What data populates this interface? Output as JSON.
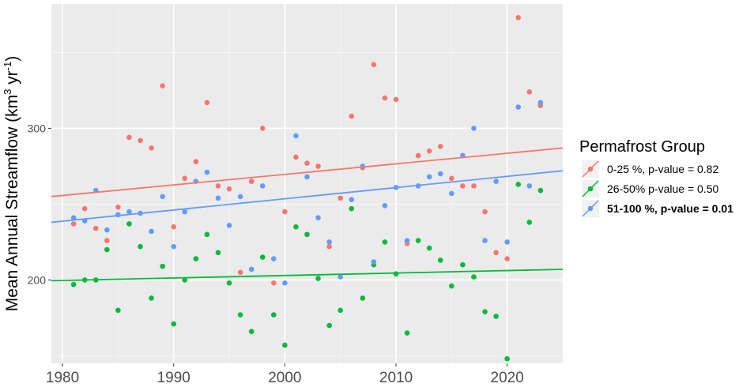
{
  "chart_data": {
    "type": "scatter",
    "title": "",
    "xlabel": "",
    "ylabel_main": "Mean Annual Streamflow (km",
    "ylabel_sup1": "3",
    "ylabel_mid": " yr",
    "ylabel_sup2": "-1",
    "ylabel_end": ")",
    "xlim": [
      1979,
      2025
    ],
    "ylim": [
      145,
      382
    ],
    "xticks": [
      "1980",
      "1990",
      "2000",
      "2010",
      "2020"
    ],
    "yticks": [
      "200",
      "300"
    ],
    "grid": true,
    "legend_position": "right",
    "legend_title": "Permafrost Group",
    "series": [
      {
        "name": "0-25 %, p-value = 0.82",
        "color": "#F8766D",
        "bold": false,
        "trend": [
          [
            1979,
            255
          ],
          [
            2025,
            287
          ]
        ],
        "points": [
          [
            1981,
            237
          ],
          [
            1982,
            247
          ],
          [
            1983,
            234
          ],
          [
            1984,
            226
          ],
          [
            1985,
            248
          ],
          [
            1986,
            294
          ],
          [
            1987,
            292
          ],
          [
            1988,
            287
          ],
          [
            1989,
            328
          ],
          [
            1990,
            235
          ],
          [
            1991,
            267
          ],
          [
            1992,
            278
          ],
          [
            1993,
            317
          ],
          [
            1994,
            262
          ],
          [
            1995,
            260
          ],
          [
            1996,
            205
          ],
          [
            1997,
            265
          ],
          [
            1998,
            300
          ],
          [
            1999,
            198
          ],
          [
            2000,
            245
          ],
          [
            2001,
            281
          ],
          [
            2002,
            277
          ],
          [
            2003,
            275
          ],
          [
            2004,
            222
          ],
          [
            2005,
            254
          ],
          [
            2006,
            308
          ],
          [
            2007,
            274
          ],
          [
            2008,
            342
          ],
          [
            2009,
            320
          ],
          [
            2010,
            319
          ],
          [
            2011,
            224
          ],
          [
            2012,
            282
          ],
          [
            2013,
            285
          ],
          [
            2014,
            288
          ],
          [
            2015,
            267
          ],
          [
            2016,
            262
          ],
          [
            2017,
            262
          ],
          [
            2018,
            245
          ],
          [
            2019,
            218
          ],
          [
            2020,
            214
          ],
          [
            2021,
            373
          ],
          [
            2022,
            324
          ],
          [
            2023,
            315
          ]
        ]
      },
      {
        "name": "26-50% p-value = 0.50",
        "color": "#00BA38",
        "bold": false,
        "trend": [
          [
            1979,
            199.5
          ],
          [
            2025,
            207
          ]
        ],
        "points": [
          [
            1981,
            197
          ],
          [
            1982,
            200
          ],
          [
            1983,
            200
          ],
          [
            1984,
            220
          ],
          [
            1985,
            180
          ],
          [
            1986,
            237
          ],
          [
            1987,
            222
          ],
          [
            1988,
            188
          ],
          [
            1989,
            209
          ],
          [
            1990,
            171
          ],
          [
            1991,
            200
          ],
          [
            1992,
            214
          ],
          [
            1993,
            230
          ],
          [
            1994,
            218
          ],
          [
            1995,
            198
          ],
          [
            1996,
            177
          ],
          [
            1997,
            166
          ],
          [
            1998,
            215
          ],
          [
            1999,
            177
          ],
          [
            2000,
            157
          ],
          [
            2001,
            235
          ],
          [
            2002,
            230
          ],
          [
            2003,
            201
          ],
          [
            2004,
            170
          ],
          [
            2005,
            180
          ],
          [
            2006,
            247
          ],
          [
            2007,
            188
          ],
          [
            2008,
            210
          ],
          [
            2009,
            225
          ],
          [
            2010,
            204
          ],
          [
            2011,
            165
          ],
          [
            2012,
            226
          ],
          [
            2013,
            221
          ],
          [
            2014,
            213
          ],
          [
            2015,
            196
          ],
          [
            2016,
            210
          ],
          [
            2017,
            202
          ],
          [
            2018,
            179
          ],
          [
            2019,
            176
          ],
          [
            2020,
            148
          ],
          [
            2021,
            263
          ],
          [
            2022,
            238
          ],
          [
            2023,
            259
          ]
        ]
      },
      {
        "name": "51-100 %, p-value = 0.01",
        "color": "#619CFF",
        "bold": true,
        "trend": [
          [
            1979,
            238
          ],
          [
            2025,
            272
          ]
        ],
        "points": [
          [
            1981,
            241
          ],
          [
            1982,
            239
          ],
          [
            1983,
            259
          ],
          [
            1984,
            233
          ],
          [
            1985,
            243
          ],
          [
            1986,
            245
          ],
          [
            1987,
            244
          ],
          [
            1988,
            232
          ],
          [
            1989,
            255
          ],
          [
            1990,
            222
          ],
          [
            1991,
            245
          ],
          [
            1992,
            265
          ],
          [
            1993,
            271
          ],
          [
            1994,
            254
          ],
          [
            1995,
            236
          ],
          [
            1996,
            255
          ],
          [
            1997,
            207
          ],
          [
            1998,
            262
          ],
          [
            1999,
            214
          ],
          [
            2000,
            198
          ],
          [
            2001,
            295
          ],
          [
            2002,
            268
          ],
          [
            2003,
            241
          ],
          [
            2004,
            225
          ],
          [
            2005,
            202
          ],
          [
            2006,
            253
          ],
          [
            2007,
            275
          ],
          [
            2008,
            212
          ],
          [
            2009,
            249
          ],
          [
            2010,
            261
          ],
          [
            2011,
            226
          ],
          [
            2012,
            262
          ],
          [
            2013,
            268
          ],
          [
            2014,
            270
          ],
          [
            2015,
            257
          ],
          [
            2016,
            282
          ],
          [
            2017,
            300
          ],
          [
            2018,
            226
          ],
          [
            2019,
            265
          ],
          [
            2020,
            225
          ],
          [
            2021,
            314
          ],
          [
            2022,
            262
          ],
          [
            2023,
            317
          ]
        ]
      }
    ]
  }
}
